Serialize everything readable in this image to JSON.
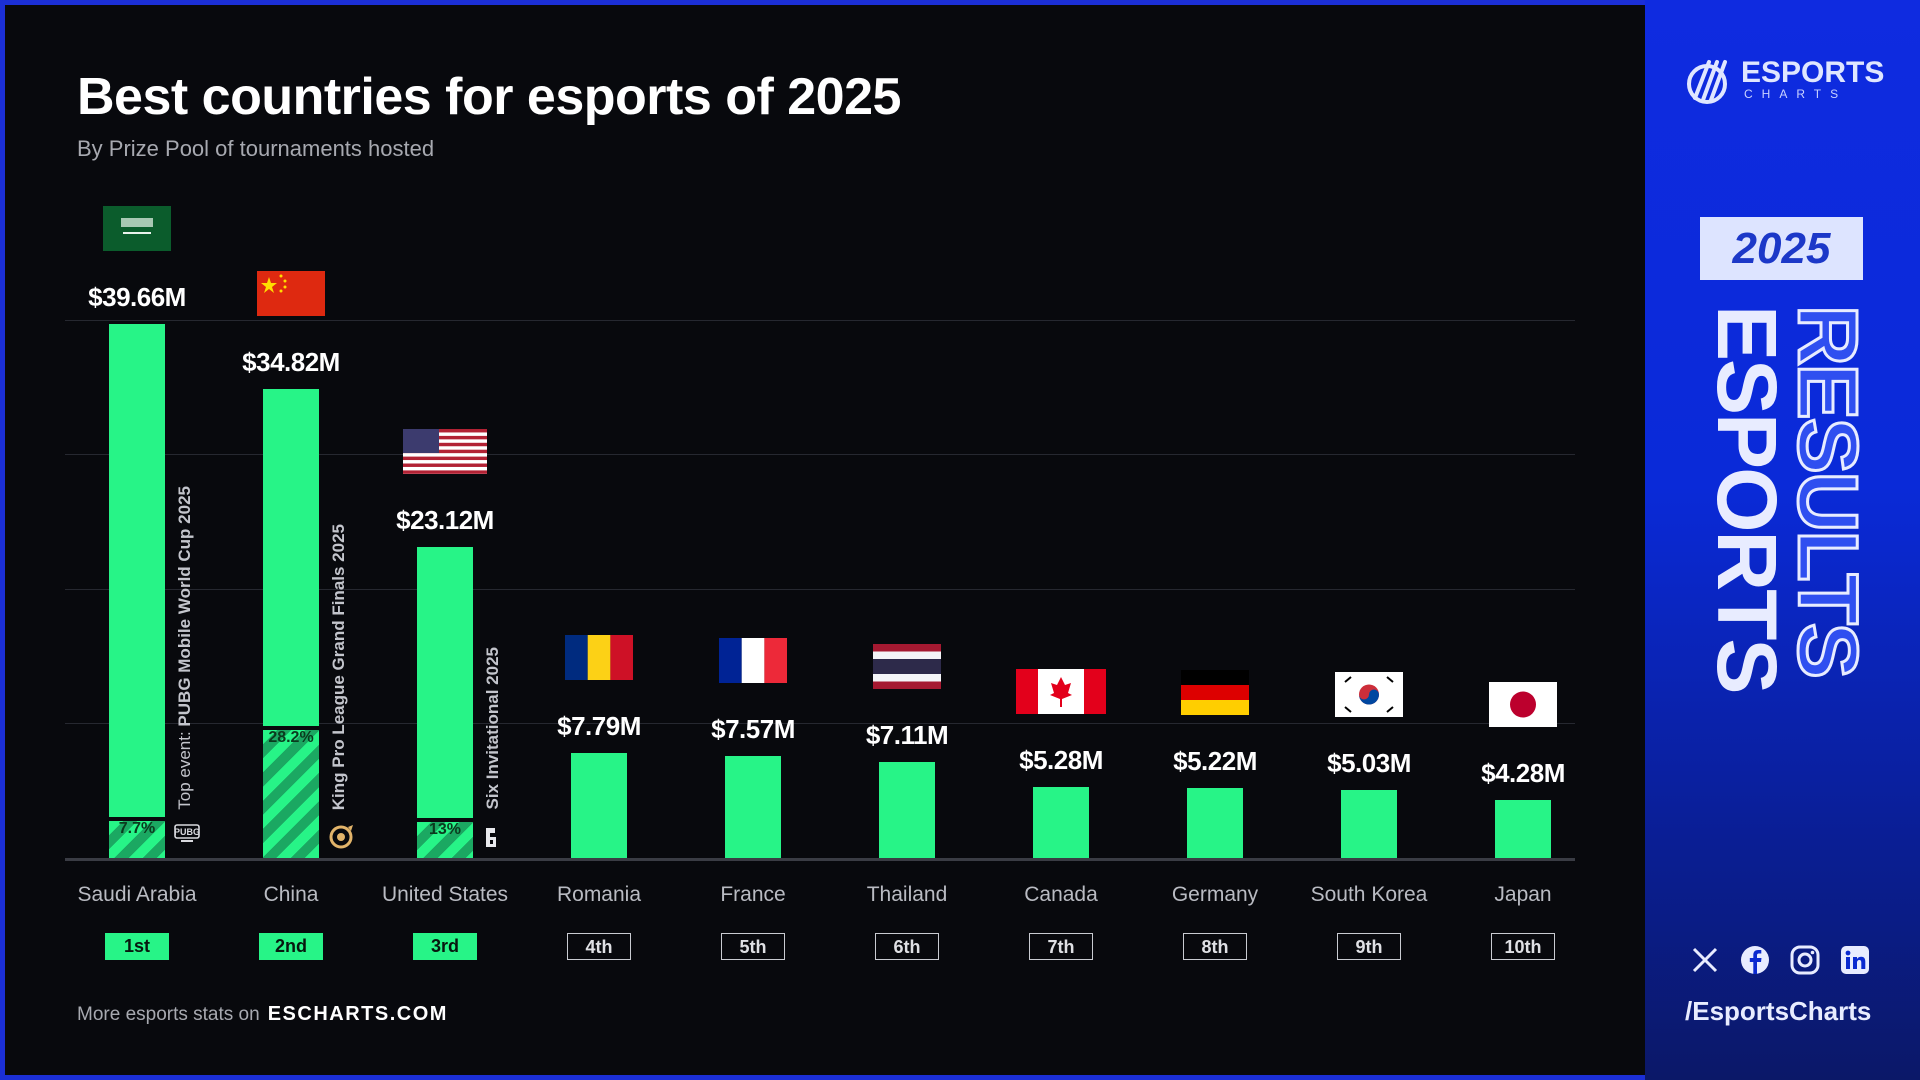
{
  "title": "Best countries for esports of 2025",
  "subtitle": "By Prize Pool of tournaments hosted",
  "footer": {
    "text": "More esports stats on",
    "link": "ESCHARTS.COM"
  },
  "brand": {
    "logo_word": "ESPORTS",
    "logo_sub": "CHARTS",
    "year": "2025",
    "vertical_1": "ESPORTS",
    "vertical_2": "RESULTS",
    "handle": "/EsportsCharts",
    "social_icons": [
      "x-icon",
      "facebook-icon",
      "instagram-icon",
      "linkedin-icon"
    ]
  },
  "colors": {
    "bar": "#27f487",
    "background": "#08090d",
    "panel": "#0f2be0"
  },
  "chart_data": {
    "type": "bar",
    "title": "Best countries for esports of 2025",
    "subtitle": "By Prize Pool of tournaments hosted",
    "unit": "USD millions",
    "grid": true,
    "categories": [
      "Saudi Arabia",
      "China",
      "United States",
      "Romania",
      "France",
      "Thailand",
      "Canada",
      "Germany",
      "South Korea",
      "Japan"
    ],
    "values": [
      39.66,
      34.82,
      23.12,
      7.79,
      7.57,
      7.11,
      5.28,
      5.22,
      5.03,
      4.28
    ],
    "value_labels": [
      "$39.66M",
      "$34.82M",
      "$23.12M",
      "$7.79M",
      "$7.57M",
      "$7.11M",
      "$5.28M",
      "$5.22M",
      "$5.03M",
      "$4.28M"
    ],
    "ranks": [
      "1st",
      "2nd",
      "3rd",
      "4th",
      "5th",
      "6th",
      "7th",
      "8th",
      "9th",
      "10th"
    ],
    "flags": [
      "sa",
      "cn",
      "us",
      "ro",
      "fr",
      "th",
      "ca",
      "de",
      "kr",
      "jp"
    ],
    "top_events": [
      {
        "prefix": "Top event: ",
        "name": "PUBG Mobile World Cup 2025",
        "share_label": "7.7%",
        "share": 7.7,
        "icon": "pubg-mobile-icon"
      },
      {
        "prefix": "",
        "name": "King Pro League Grand Finals 2025",
        "share_label": "28.2%",
        "share": 28.2,
        "icon": "honor-of-kings-icon"
      },
      {
        "prefix": "",
        "name": "Six Invitational 2025",
        "share_label": "13%",
        "share": 13,
        "icon": "rainbow-six-icon"
      }
    ]
  }
}
